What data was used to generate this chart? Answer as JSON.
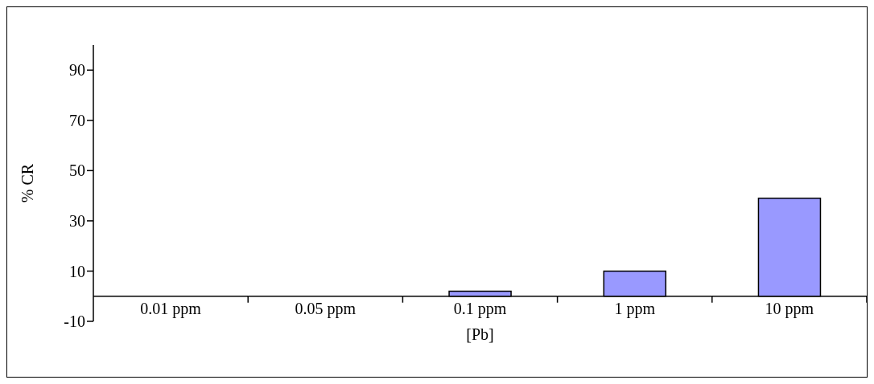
{
  "chart_data": {
    "type": "bar",
    "xlabel": "[Pb]",
    "ylabel": "% CR",
    "categories": [
      "0.01 ppm",
      "0.05 ppm",
      "0.1 ppm",
      "1 ppm",
      "10 ppm"
    ],
    "values": [
      0,
      0,
      2,
      10,
      39
    ],
    "color": "#9999ff",
    "ylim": [
      -10,
      100
    ],
    "yticks": [
      -10,
      10,
      30,
      50,
      70,
      90
    ],
    "grid": false,
    "legend": false
  }
}
